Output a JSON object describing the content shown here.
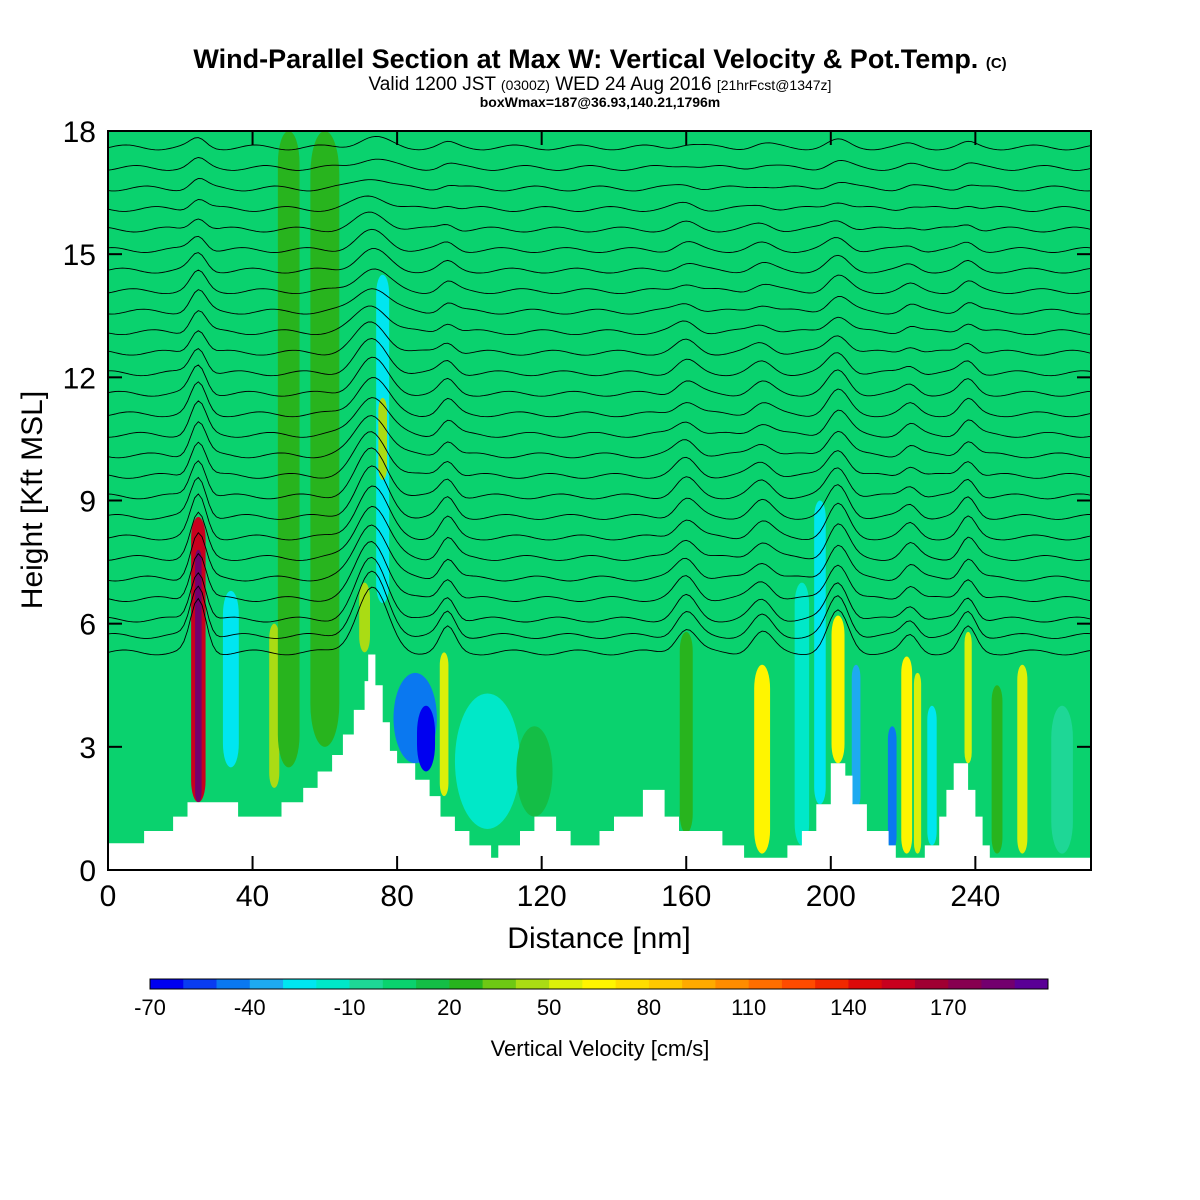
{
  "title": {
    "main": "Wind-Parallel Section at Max W: Vertical Velocity & Pot.Temp.",
    "copyright": "(C)",
    "valid_prefix": "Valid 1200 JST",
    "valid_utc": "(0300Z)",
    "valid_date": "WED 24 Aug 2016",
    "forecast": "[21hrFcst@1347z]",
    "box_info": "boxWmax=187@36.93,140.21,1796m"
  },
  "chart_data": {
    "type": "heatmap",
    "xlabel": "Distance [nm]",
    "ylabel": "Height [Kft MSL]",
    "xlim": [
      0,
      272
    ],
    "ylim": [
      0,
      18
    ],
    "x_ticks": [
      0,
      40,
      80,
      120,
      160,
      200,
      240
    ],
    "y_ticks": [
      0,
      3,
      6,
      9,
      12,
      15,
      18
    ],
    "background_w": 5,
    "colorbar": {
      "label": "Vertical Velocity [cm/s]",
      "tick_labels": [
        -70,
        -40,
        -10,
        20,
        50,
        80,
        110,
        140,
        170
      ],
      "levels": [
        -70,
        -60,
        -50,
        -40,
        -30,
        -20,
        -10,
        0,
        10,
        20,
        30,
        40,
        50,
        60,
        70,
        80,
        90,
        100,
        110,
        120,
        130,
        140,
        150,
        160,
        170,
        180,
        190
      ],
      "colors": [
        "#0000f0",
        "#0a3cf0",
        "#0a78f0",
        "#1eaaf0",
        "#00e6f0",
        "#00e8c8",
        "#1ed796",
        "#0ad26e",
        "#14be46",
        "#28b41e",
        "#6ec814",
        "#aadc14",
        "#dcf00a",
        "#fff500",
        "#ffdc00",
        "#ffc800",
        "#ffaa00",
        "#ff8c00",
        "#ff6e00",
        "#ff4b00",
        "#f02800",
        "#dc0a0a",
        "#c8001e",
        "#a00032",
        "#870050",
        "#73006e",
        "#5a0096"
      ]
    },
    "terrain": [
      [
        0,
        0.65
      ],
      [
        10,
        0.65
      ],
      [
        10,
        0.95
      ],
      [
        18,
        0.95
      ],
      [
        18,
        1.3
      ],
      [
        22,
        1.3
      ],
      [
        22,
        1.65
      ],
      [
        36,
        1.65
      ],
      [
        36,
        1.3
      ],
      [
        48,
        1.3
      ],
      [
        48,
        1.65
      ],
      [
        54,
        1.65
      ],
      [
        54,
        2.0
      ],
      [
        58,
        2.0
      ],
      [
        58,
        2.4
      ],
      [
        62,
        2.4
      ],
      [
        62,
        2.8
      ],
      [
        65,
        2.8
      ],
      [
        65,
        3.3
      ],
      [
        68,
        3.3
      ],
      [
        68,
        3.9
      ],
      [
        71,
        3.9
      ],
      [
        71,
        4.6
      ],
      [
        72,
        4.6
      ],
      [
        72,
        5.25
      ],
      [
        74,
        5.25
      ],
      [
        74,
        4.5
      ],
      [
        76,
        4.5
      ],
      [
        76,
        3.6
      ],
      [
        78,
        3.6
      ],
      [
        78,
        2.9
      ],
      [
        80,
        2.9
      ],
      [
        80,
        2.6
      ],
      [
        85,
        2.6
      ],
      [
        85,
        2.2
      ],
      [
        89,
        2.2
      ],
      [
        89,
        1.8
      ],
      [
        92,
        1.8
      ],
      [
        92,
        1.3
      ],
      [
        96,
        1.3
      ],
      [
        96,
        0.95
      ],
      [
        100,
        0.95
      ],
      [
        100,
        0.6
      ],
      [
        106,
        0.6
      ],
      [
        106,
        0.3
      ],
      [
        108,
        0.3
      ],
      [
        108,
        0.6
      ],
      [
        114,
        0.6
      ],
      [
        114,
        0.95
      ],
      [
        118,
        0.95
      ],
      [
        118,
        1.3
      ],
      [
        124,
        1.3
      ],
      [
        124,
        0.95
      ],
      [
        128,
        0.95
      ],
      [
        128,
        0.6
      ],
      [
        136,
        0.6
      ],
      [
        136,
        0.95
      ],
      [
        140,
        0.95
      ],
      [
        140,
        1.3
      ],
      [
        148,
        1.3
      ],
      [
        148,
        1.95
      ],
      [
        154,
        1.95
      ],
      [
        154,
        1.3
      ],
      [
        158,
        1.3
      ],
      [
        158,
        0.95
      ],
      [
        170,
        0.95
      ],
      [
        170,
        0.6
      ],
      [
        176,
        0.6
      ],
      [
        176,
        0.3
      ],
      [
        188,
        0.3
      ],
      [
        188,
        0.6
      ],
      [
        192,
        0.6
      ],
      [
        192,
        0.95
      ],
      [
        196,
        0.95
      ],
      [
        196,
        1.6
      ],
      [
        200,
        1.6
      ],
      [
        200,
        2.6
      ],
      [
        204,
        2.6
      ],
      [
        204,
        2.3
      ],
      [
        206,
        2.3
      ],
      [
        206,
        1.6
      ],
      [
        210,
        1.6
      ],
      [
        210,
        0.95
      ],
      [
        216,
        0.95
      ],
      [
        216,
        0.6
      ],
      [
        218,
        0.6
      ],
      [
        218,
        0.3
      ],
      [
        226,
        0.3
      ],
      [
        226,
        0.6
      ],
      [
        230,
        0.6
      ],
      [
        230,
        1.3
      ],
      [
        232,
        1.3
      ],
      [
        232,
        1.95
      ],
      [
        234,
        1.95
      ],
      [
        234,
        2.6
      ],
      [
        238,
        2.6
      ],
      [
        238,
        1.95
      ],
      [
        240,
        1.95
      ],
      [
        240,
        1.3
      ],
      [
        242,
        1.3
      ],
      [
        242,
        0.6
      ],
      [
        244,
        0.6
      ],
      [
        244,
        0.3
      ],
      [
        272,
        0.3
      ]
    ],
    "features": [
      {
        "x": 25,
        "y_bottom": 1.65,
        "y_top": 8.6,
        "halfwidth": 2.0,
        "w": 150
      },
      {
        "x": 25,
        "y_bottom": 1.65,
        "y_top": 7.8,
        "halfwidth": 0.9,
        "w": 185
      },
      {
        "x": 34,
        "y_bottom": 2.5,
        "y_top": 6.8,
        "halfwidth": 2.2,
        "w": -30
      },
      {
        "x": 46,
        "y_bottom": 2.0,
        "y_top": 6.0,
        "halfwidth": 1.4,
        "w": 40
      },
      {
        "x": 50,
        "y_bottom": 2.5,
        "y_top": 18.0,
        "halfwidth": 3.0,
        "w": 20
      },
      {
        "x": 60,
        "y_bottom": 3.0,
        "y_top": 18.0,
        "halfwidth": 4.0,
        "w": 20
      },
      {
        "x": 76,
        "y_bottom": 6.5,
        "y_top": 14.5,
        "halfwidth": 1.8,
        "w": -30
      },
      {
        "x": 76,
        "y_bottom": 9.5,
        "y_top": 11.5,
        "halfwidth": 1.2,
        "w": 40
      },
      {
        "x": 71,
        "y_bottom": 5.3,
        "y_top": 7.0,
        "halfwidth": 1.5,
        "w": 40
      },
      {
        "x": 85,
        "y_bottom": 2.6,
        "y_top": 4.8,
        "halfwidth": 6.0,
        "w": -45
      },
      {
        "x": 88,
        "y_bottom": 2.4,
        "y_top": 4.0,
        "halfwidth": 2.5,
        "w": -65
      },
      {
        "x": 93,
        "y_bottom": 1.8,
        "y_top": 5.3,
        "halfwidth": 1.2,
        "w": 50
      },
      {
        "x": 105,
        "y_bottom": 1.0,
        "y_top": 4.3,
        "halfwidth": 9.0,
        "w": -12
      },
      {
        "x": 118,
        "y_bottom": 1.3,
        "y_top": 3.5,
        "halfwidth": 5.0,
        "w": 15
      },
      {
        "x": 160,
        "y_bottom": 0.9,
        "y_top": 5.8,
        "halfwidth": 1.8,
        "w": 25
      },
      {
        "x": 181,
        "y_bottom": 0.4,
        "y_top": 5.0,
        "halfwidth": 2.2,
        "w": 65
      },
      {
        "x": 192,
        "y_bottom": 0.6,
        "y_top": 7.0,
        "halfwidth": 2.0,
        "w": -15
      },
      {
        "x": 197,
        "y_bottom": 1.6,
        "y_top": 9.0,
        "halfwidth": 1.6,
        "w": -25
      },
      {
        "x": 202,
        "y_bottom": 2.6,
        "y_top": 6.2,
        "halfwidth": 1.8,
        "w": 60
      },
      {
        "x": 207,
        "y_bottom": 1.5,
        "y_top": 5.0,
        "halfwidth": 1.2,
        "w": -40
      },
      {
        "x": 217,
        "y_bottom": 0.5,
        "y_top": 3.5,
        "halfwidth": 1.2,
        "w": -45
      },
      {
        "x": 221,
        "y_bottom": 0.4,
        "y_top": 5.2,
        "halfwidth": 1.5,
        "w": 60
      },
      {
        "x": 224,
        "y_bottom": 0.4,
        "y_top": 4.8,
        "halfwidth": 1.0,
        "w": 50
      },
      {
        "x": 228,
        "y_bottom": 0.6,
        "y_top": 4.0,
        "halfwidth": 1.3,
        "w": -25
      },
      {
        "x": 238,
        "y_bottom": 2.6,
        "y_top": 5.8,
        "halfwidth": 1.0,
        "w": 55
      },
      {
        "x": 246,
        "y_bottom": 0.4,
        "y_top": 4.5,
        "halfwidth": 1.5,
        "w": 25
      },
      {
        "x": 253,
        "y_bottom": 0.4,
        "y_top": 5.0,
        "halfwidth": 1.4,
        "w": 55
      },
      {
        "x": 264,
        "y_bottom": 0.4,
        "y_top": 4.0,
        "halfwidth": 3.0,
        "w": -10
      }
    ],
    "theta_contours": {
      "levels_baseline_kft": [
        5.3,
        5.7,
        6.1,
        6.6,
        7.1,
        7.6,
        8.1,
        8.6,
        9.1,
        9.6,
        10.1,
        10.6,
        11.1,
        11.6,
        12.1,
        12.6,
        13.1,
        13.6,
        14.1,
        14.6,
        15.1,
        15.6,
        16.1,
        16.6,
        17.1,
        17.6
      ],
      "bumps": [
        {
          "x": 25,
          "amp": 1.3,
          "halfwidth": 3
        },
        {
          "x": 73,
          "amp": 1.6,
          "halfwidth": 6
        },
        {
          "x": 94,
          "amp": 0.6,
          "halfwidth": 3
        },
        {
          "x": 160,
          "amp": 0.6,
          "halfwidth": 4
        },
        {
          "x": 181,
          "amp": 0.5,
          "halfwidth": 4
        },
        {
          "x": 202,
          "amp": 1.0,
          "halfwidth": 4
        },
        {
          "x": 222,
          "amp": 0.4,
          "halfwidth": 3
        },
        {
          "x": 238,
          "amp": 0.6,
          "halfwidth": 3
        }
      ]
    }
  }
}
